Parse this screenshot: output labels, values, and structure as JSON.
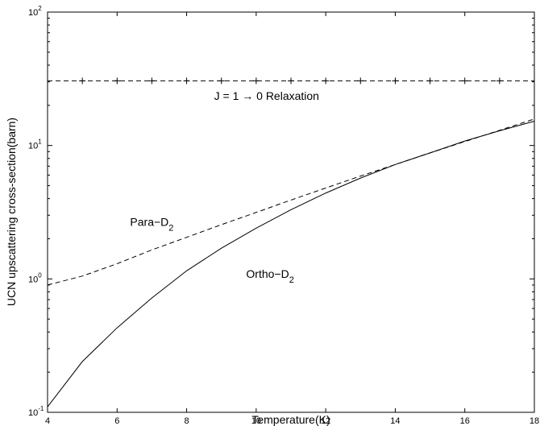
{
  "chart_data": {
    "type": "line",
    "xlabel": "Temperature(K)",
    "ylabel": "UCN upscattering cross-section(barn)",
    "xlim": [
      4,
      18
    ],
    "ylim": [
      0.1,
      100
    ],
    "yscale": "log",
    "grid": false,
    "x_ticks": [
      "4",
      "6",
      "8",
      "10",
      "12",
      "14",
      "16",
      "18"
    ],
    "y_ticks": [
      {
        "base": "10",
        "exp": "-1"
      },
      {
        "base": "10",
        "exp": "0"
      },
      {
        "base": "10",
        "exp": "1"
      },
      {
        "base": "10",
        "exp": "2"
      }
    ],
    "series": [
      {
        "style": "dashed",
        "x": [
          4,
          5,
          6,
          7,
          8,
          9,
          10,
          11,
          12,
          13,
          14,
          15,
          16,
          17,
          18
        ],
        "y": [
          0.9,
          1.05,
          1.3,
          1.65,
          2.05,
          2.55,
          3.15,
          3.9,
          4.8,
          5.9,
          7.2,
          8.8,
          10.7,
          13.0,
          15.8
        ]
      },
      {
        "style": "solid",
        "x": [
          4,
          5,
          6,
          7,
          8,
          9,
          10,
          11,
          12,
          13,
          14,
          15,
          16,
          17,
          18
        ],
        "y": [
          0.11,
          0.24,
          0.43,
          0.72,
          1.15,
          1.7,
          2.4,
          3.3,
          4.4,
          5.7,
          7.2,
          8.8,
          10.8,
          12.9,
          15.2
        ]
      },
      {
        "style": "dashed-plus",
        "x": [
          5,
          6,
          7,
          8,
          9,
          10,
          11,
          12,
          13,
          14,
          15,
          16,
          17
        ],
        "y": [
          30.5,
          30.5,
          30.5,
          30.5,
          30.5,
          30.5,
          30.5,
          30.5,
          30.5,
          30.5,
          30.5,
          30.5,
          30.5
        ]
      }
    ],
    "annotations": {
      "relaxation": {
        "pre": "J = 1 ",
        "arrow": "→",
        "post": " 0 Relaxation",
        "x": 10.3,
        "y": 22
      },
      "para": {
        "main": "Para−D",
        "sub": "2",
        "x": 7.0,
        "y": 2.5
      },
      "ortho": {
        "main": "Ortho−D",
        "sub": "2",
        "x": 10.4,
        "y": 1.02
      }
    }
  }
}
